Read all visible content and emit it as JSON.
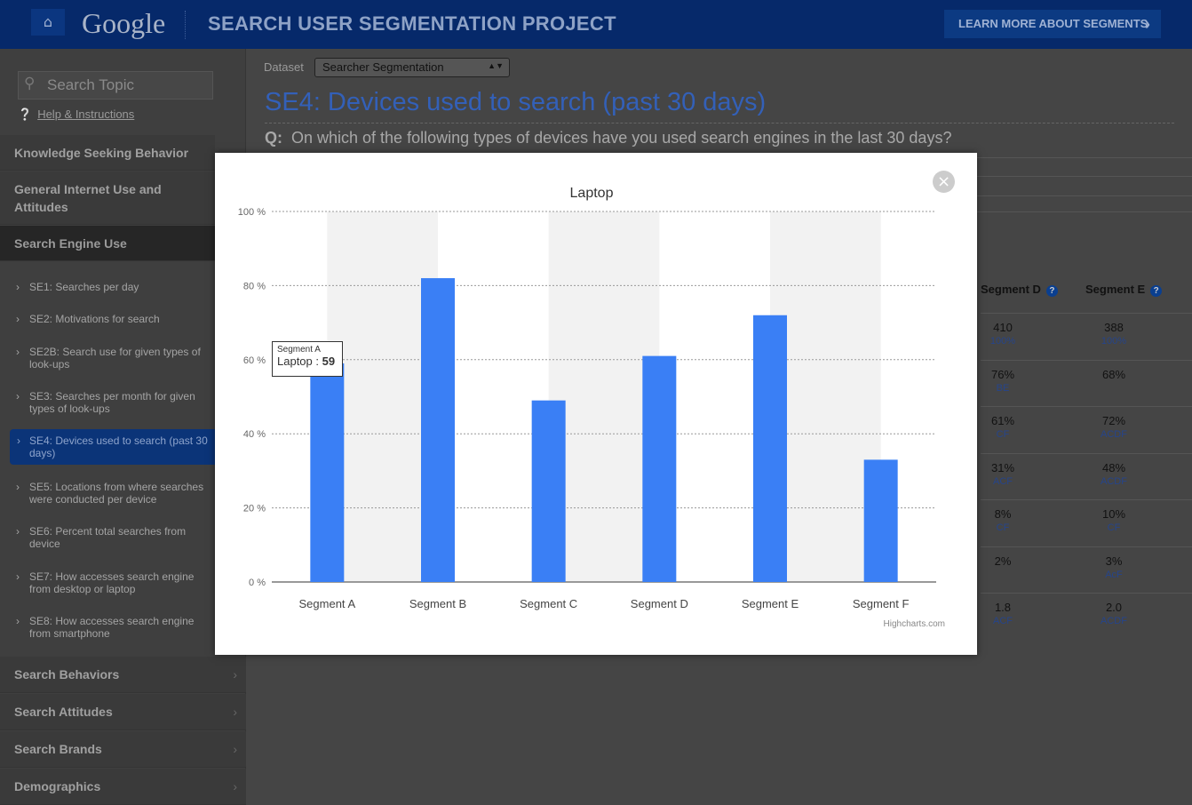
{
  "header": {
    "home_icon": "home-icon",
    "logo": "Google",
    "title": "SEARCH USER SEGMENTATION PROJECT",
    "learn_more": "LEARN MORE ABOUT SEGMENTS"
  },
  "sidebar": {
    "search_placeholder": "Search Topic",
    "help": "Help & Instructions",
    "categories": [
      "Knowledge Seeking Behavior",
      "General Internet Use and Attitudes",
      "Search Engine Use",
      "Search Behaviors",
      "Search Attitudes",
      "Search Brands",
      "Demographics"
    ],
    "items": [
      "SE1: Searches per day",
      "SE2: Motivations for search",
      "SE2B: Search use for given types of look-ups",
      "SE3: Searches per month for given types of look-ups",
      "SE4: Devices used to search (past 30 days)",
      "SE5: Locations from where searches were conducted per device",
      "SE6: Percent total searches from device",
      "SE7: How accesses search engine from desktop or laptop",
      "SE8: How accesses search engine from smartphone"
    ]
  },
  "main": {
    "dataset_label": "Dataset",
    "dataset_value": "Searcher Segmentation",
    "title": "SE4: Devices used to search (past 30 days)",
    "question_prefix": "Q:",
    "question": "On which of the following types of devices have you used search engines in the last 30 days?",
    "table": {
      "headers": [
        "Segment D",
        "Segment E"
      ],
      "rows": [
        [
          [
            "410",
            "100%"
          ],
          [
            "388",
            "100%"
          ]
        ],
        [
          [
            "76%",
            "BE"
          ],
          [
            "68%",
            ""
          ]
        ],
        [
          [
            "61%",
            "CF"
          ],
          [
            "72%",
            "ACDF"
          ]
        ],
        [
          [
            "31%",
            "ACF"
          ],
          [
            "48%",
            "ACDF"
          ]
        ],
        [
          [
            "8%",
            "CF"
          ],
          [
            "10%",
            "CF"
          ]
        ],
        [
          [
            "2%",
            ""
          ],
          [
            "3%",
            "AcF"
          ]
        ],
        [
          [
            "1.8",
            "ACF"
          ],
          [
            "2.0",
            "ACDF"
          ]
        ]
      ]
    }
  },
  "modal": {
    "close_icon": "close-icon",
    "tooltip": {
      "segment": "Segment A",
      "label": "Laptop :",
      "value": "59"
    },
    "credit": "Highcharts.com"
  },
  "chart_data": {
    "type": "bar",
    "title": "Laptop",
    "categories": [
      "Segment A",
      "Segment B",
      "Segment C",
      "Segment D",
      "Segment E",
      "Segment F"
    ],
    "values": [
      59,
      82,
      49,
      61,
      72,
      33
    ],
    "ylim": [
      0,
      100
    ],
    "yticks": [
      "0 %",
      "20 %",
      "40 %",
      "60 %",
      "80 %",
      "100 %"
    ],
    "grid": true,
    "bar_color": "#3a7ff5",
    "xlabel": "",
    "ylabel": ""
  }
}
